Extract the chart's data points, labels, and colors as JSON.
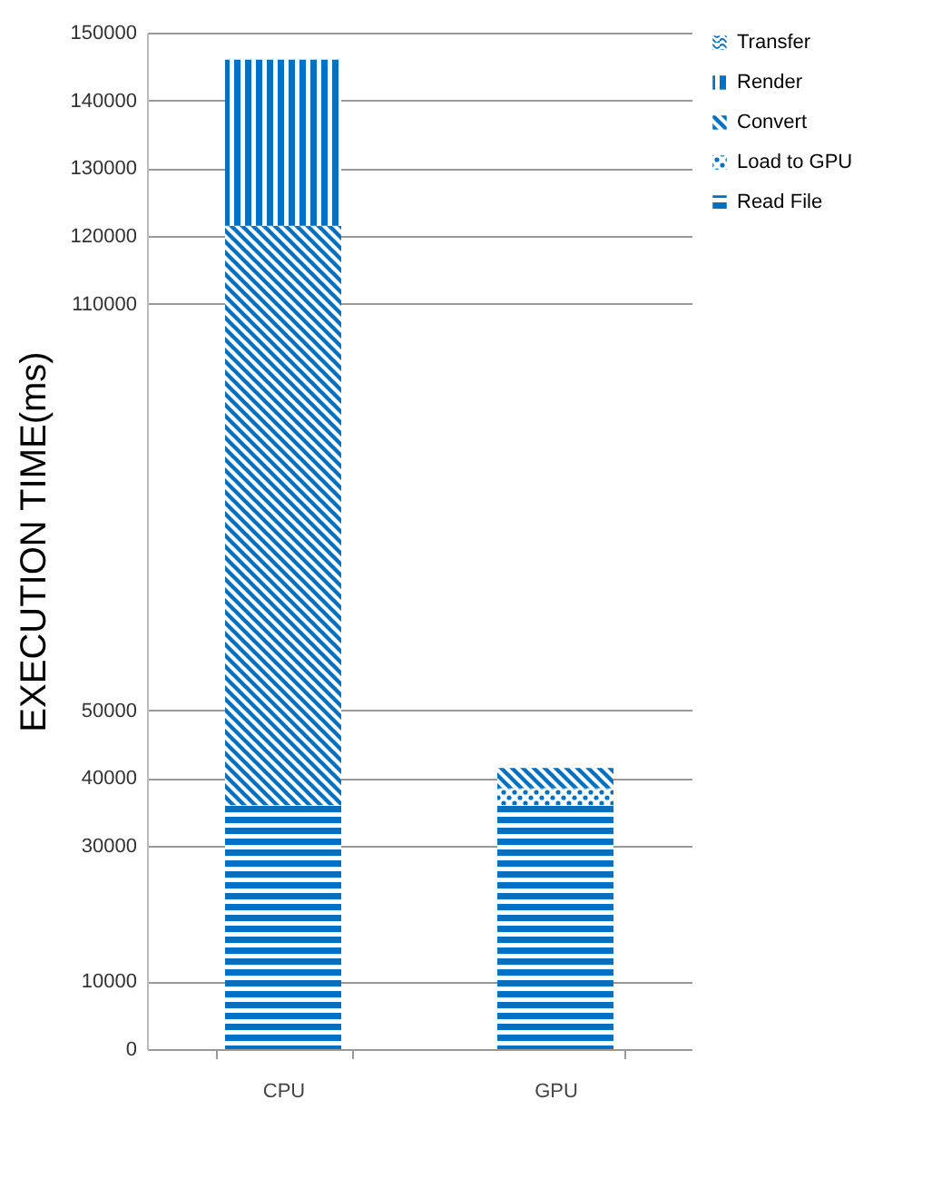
{
  "chart_data": {
    "type": "bar",
    "stacked": true,
    "ylabel": "EXECUTION TIME(ms)",
    "categories": [
      "CPU",
      "GPU"
    ],
    "series": [
      {
        "name": "Read File",
        "color": "#0070c0",
        "values": [
          36000,
          36000
        ]
      },
      {
        "name": "Load to GPU",
        "color": "#0070c0",
        "values": [
          0,
          2500
        ]
      },
      {
        "name": "Convert",
        "color": "#0070c0",
        "values": [
          85500,
          3000
        ]
      },
      {
        "name": "Render",
        "color": "#0070c0",
        "values": [
          24500,
          0
        ]
      },
      {
        "name": "Transfer",
        "color": "#0070c0",
        "values": [
          0,
          0
        ]
      }
    ],
    "ylim": [
      0,
      150000
    ],
    "yticks": [
      0,
      10000,
      30000,
      40000,
      50000,
      110000,
      120000,
      130000,
      140000,
      150000
    ],
    "grid": "y",
    "legend": "right"
  }
}
